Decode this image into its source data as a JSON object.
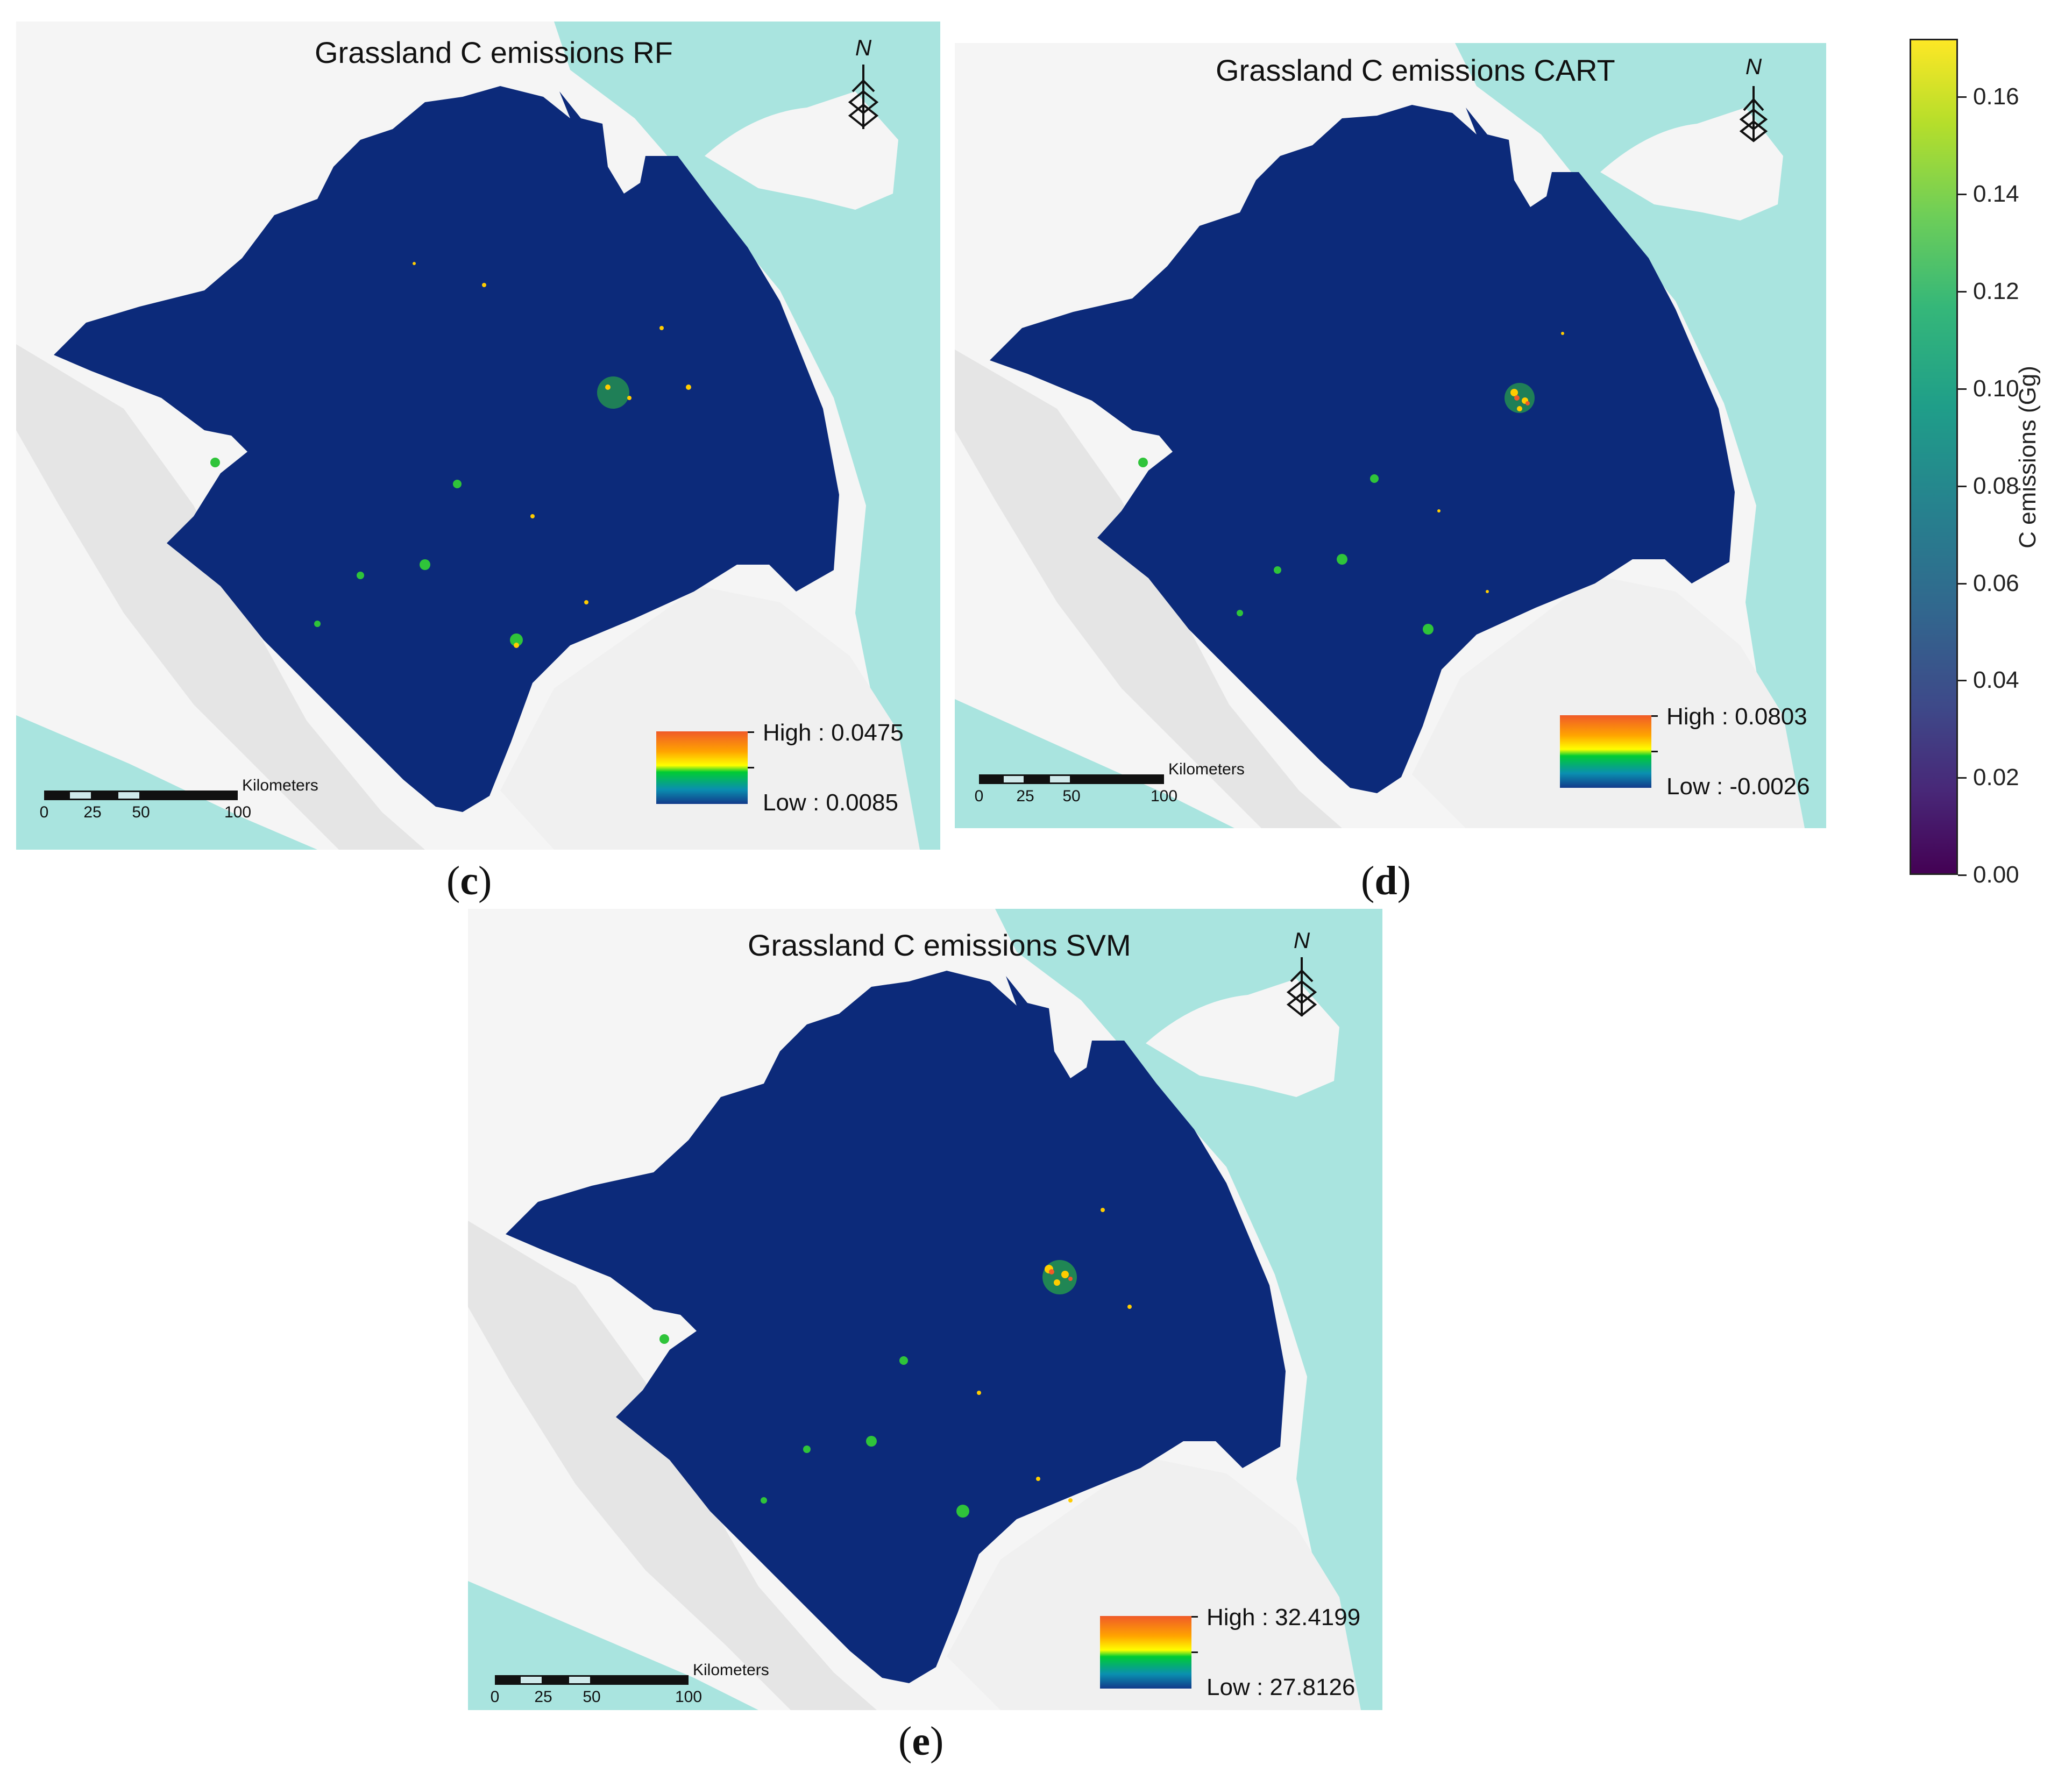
{
  "panels": [
    {
      "title": "Grassland C emissions RF",
      "caption_letter": "c",
      "legend_high": "High : 0.0475",
      "legend_low": "Low : 0.0085",
      "north_label": "N",
      "scale_unit": "Kilometers",
      "scale_ticks": [
        "0",
        "25",
        "50",
        "100"
      ]
    },
    {
      "title": "Grassland C emissions CART",
      "caption_letter": "d",
      "legend_high": "High : 0.0803",
      "legend_low": "Low : -0.0026",
      "north_label": "N",
      "scale_unit": "Kilometers",
      "scale_ticks": [
        "0",
        "25",
        "50",
        "100"
      ]
    },
    {
      "title": "Grassland C emissions SVM",
      "caption_letter": "e",
      "legend_high": "High : 32.4199",
      "legend_low": "Low : 27.8126",
      "north_label": "N",
      "scale_unit": "Kilometers",
      "scale_ticks": [
        "0",
        "25",
        "50",
        "100"
      ]
    }
  ],
  "colorbar": {
    "title": "C emissions (Gg)",
    "ticks": [
      "0.00",
      "0.02",
      "0.04",
      "0.06",
      "0.08",
      "0.10",
      "0.12",
      "0.14",
      "0.16"
    ],
    "tick_values": [
      0,
      0.02,
      0.04,
      0.06,
      0.08,
      0.1,
      0.12,
      0.14,
      0.16
    ],
    "range": [
      0,
      0.172
    ]
  },
  "colors": {
    "region_fill": "#0c2a7a",
    "sea": "#a9e4df",
    "land": "#f6f6f6",
    "hillshade": "#d9d9d9"
  }
}
